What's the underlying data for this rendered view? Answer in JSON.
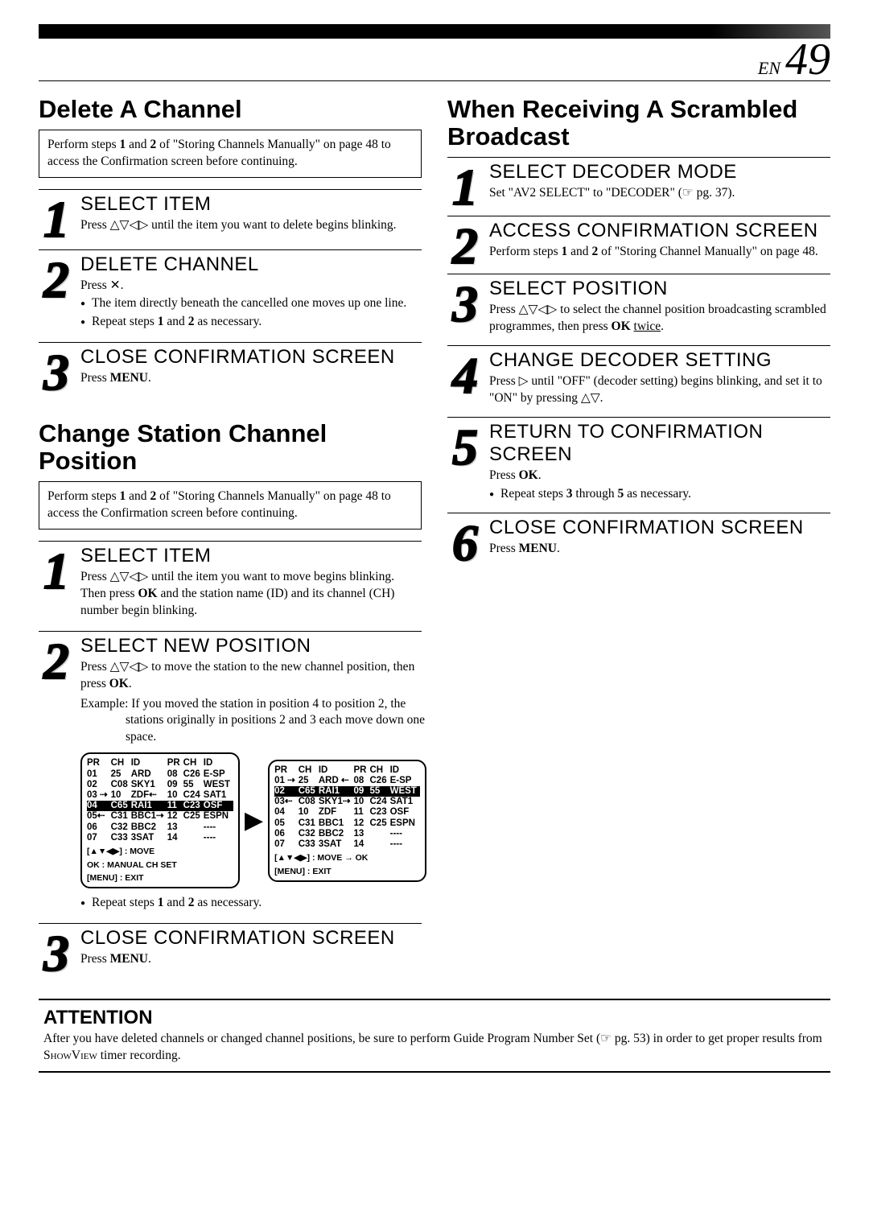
{
  "page": {
    "lang": "EN",
    "num": "49"
  },
  "left": {
    "title1": "Delete A Channel",
    "prelim1_a": "Perform steps ",
    "prelim1_b": "1",
    "prelim1_c": " and ",
    "prelim1_d": "2",
    "prelim1_e": " of \"Storing Channels Manually\" on page 48 to access the Confirmation screen before continuing.",
    "s1": {
      "title": "SELECT ITEM",
      "text": "Press △▽◁▷ until the item you want to delete begins blinking."
    },
    "s2": {
      "title": "DELETE CHANNEL",
      "press": "Press ✕.",
      "li1": "The item directly beneath the cancelled one moves up one line.",
      "li2_a": "Repeat steps ",
      "li2_b": "1",
      "li2_c": " and ",
      "li2_d": "2",
      "li2_e": " as necessary."
    },
    "s3": {
      "title": "CLOSE CONFIRMATION SCREEN",
      "text_a": "Press ",
      "text_b": "MENU",
      "text_c": "."
    },
    "title2": "Change Station Channel Position",
    "prelim2_a": "Perform steps ",
    "prelim2_b": "1",
    "prelim2_c": " and ",
    "prelim2_d": "2",
    "prelim2_e": " of \"Storing Channels Manually\" on page 48 to access the Confirmation screen before continuing.",
    "p1": {
      "title": "SELECT ITEM",
      "text_a": "Press △▽◁▷ until the item you want to move begins blinking. Then press ",
      "text_b": "OK",
      "text_c": " and the station name (ID) and its channel (CH) number begin blinking."
    },
    "p2": {
      "title": "SELECT NEW POSITION",
      "text_a": "Press △▽◁▷ to move the station to the new channel position, then press ",
      "text_b": "OK",
      "text_c": ".",
      "example": "Example: If you moved the station in position 4 to position 2, the stations originally in positions 2 and 3 each move down one space.",
      "repeat_a": "Repeat steps ",
      "repeat_b": "1",
      "repeat_c": " and ",
      "repeat_d": "2",
      "repeat_e": " as necessary."
    },
    "p3": {
      "title": "CLOSE CONFIRMATION SCREEN",
      "text_a": "Press ",
      "text_b": "MENU",
      "text_c": "."
    }
  },
  "right": {
    "title": "When Receiving A Scrambled Broadcast",
    "r1": {
      "title": "SELECT DECODER MODE",
      "text": "Set \"AV2 SELECT\" to \"DECODER\" (☞ pg. 37)."
    },
    "r2": {
      "title": "ACCESS CONFIRMATION SCREEN",
      "text_a": "Perform steps ",
      "text_b": "1",
      "text_c": " and ",
      "text_d": "2",
      "text_e": " of \"Storing Channel Manually\" on page 48."
    },
    "r3": {
      "title": "SELECT POSITION",
      "text_a": "Press △▽◁▷ to select the channel position broadcasting scrambled programmes, then press ",
      "text_b": "OK",
      "text_c": " ",
      "text_d": "twice",
      "text_e": "."
    },
    "r4": {
      "title": "CHANGE DECODER SETTING",
      "text": "Press ▷ until \"OFF\" (decoder setting) begins blinking, and set it to \"ON\" by pressing △▽."
    },
    "r5": {
      "title": "RETURN TO CONFIRMATION SCREEN",
      "text_a": "Press ",
      "text_b": "OK",
      "text_c": ".",
      "li_a": "Repeat steps ",
      "li_b": "3",
      "li_c": " through ",
      "li_d": "5",
      "li_e": " as necessary."
    },
    "r6": {
      "title": "CLOSE CONFIRMATION SCREEN",
      "text_a": "Press ",
      "text_b": "MENU",
      "text_c": "."
    }
  },
  "table1": {
    "head": [
      "PR",
      "CH",
      "ID",
      "PR",
      "CH",
      "ID"
    ],
    "rows": [
      [
        "01",
        "25",
        "ARD",
        "08",
        "C26",
        "E-SP"
      ],
      [
        "02",
        "C08",
        "SKY1",
        "09",
        "55",
        "WEST"
      ],
      [
        "03 ⇢",
        "10",
        "ZDF⇠",
        "10",
        "C24",
        "SAT1"
      ],
      [
        "04",
        "C65",
        "RAI1",
        "11",
        "C23",
        "OSF"
      ],
      [
        "05⇠",
        "C31",
        "BBC1⇢",
        "12",
        "C25",
        "ESPN"
      ],
      [
        "06",
        "C32",
        "BBC2",
        "13",
        "",
        "----"
      ],
      [
        "07",
        "C33",
        "3SAT",
        "14",
        "",
        "----"
      ]
    ],
    "sel_row_index": 3,
    "foot1": "[▲▼◀▶] : MOVE",
    "foot2": "OK : MANUAL CH SET",
    "foot3": "[MENU] : EXIT"
  },
  "table2": {
    "head": [
      "PR",
      "CH",
      "ID",
      "PR",
      "CH",
      "ID"
    ],
    "rows": [
      [
        "01 ⇢",
        "25",
        "ARD ⇠",
        "08",
        "C26",
        "E-SP"
      ],
      [
        "02",
        "C65",
        "RAI1",
        "09",
        "55",
        "WEST"
      ],
      [
        "03⇠",
        "C08",
        "SKY1⇢",
        "10",
        "C24",
        "SAT1"
      ],
      [
        "04",
        "10",
        "ZDF",
        "11",
        "C23",
        "OSF"
      ],
      [
        "05",
        "C31",
        "BBC1",
        "12",
        "C25",
        "ESPN"
      ],
      [
        "06",
        "C32",
        "BBC2",
        "13",
        "",
        "----"
      ],
      [
        "07",
        "C33",
        "3SAT",
        "14",
        "",
        "----"
      ]
    ],
    "sel_row_index": 1,
    "foot1": "[▲▼◀▶] : MOVE → OK",
    "foot3": "[MENU] : EXIT"
  },
  "attention": {
    "title": "ATTENTION",
    "text_a": "After you have deleted channels or changed channel positions, be sure to perform Guide Program Number Set (☞ pg. 53) in order to get proper results from ",
    "text_b": "ShowView",
    "text_c": " timer recording."
  }
}
